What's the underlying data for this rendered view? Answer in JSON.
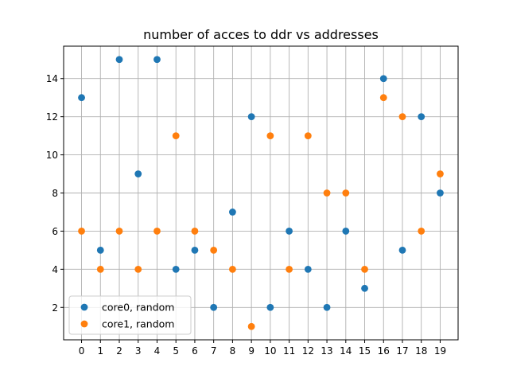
{
  "chart_data": {
    "type": "scatter",
    "title": "number of acces to ddr vs addresses",
    "xlabel": "",
    "ylabel": "",
    "x": [
      0,
      1,
      2,
      3,
      4,
      5,
      6,
      7,
      8,
      9,
      10,
      11,
      12,
      13,
      14,
      15,
      16,
      17,
      18,
      19
    ],
    "x_ticks": [
      "0",
      "1",
      "2",
      "3",
      "4",
      "5",
      "6",
      "7",
      "8",
      "9",
      "10",
      "11",
      "12",
      "13",
      "14",
      "15",
      "16",
      "17",
      "18",
      "19"
    ],
    "y_ticks": [
      2,
      4,
      6,
      8,
      10,
      12,
      14
    ],
    "xlim": [
      -0.95,
      19.95
    ],
    "ylim": [
      0.3,
      15.7
    ],
    "grid": true,
    "legend_position": "lower-left",
    "series": [
      {
        "name": "core0, random",
        "color": "#1f77b4",
        "values": [
          13,
          5,
          15,
          9,
          15,
          4,
          5,
          2,
          7,
          12,
          2,
          6,
          4,
          2,
          6,
          3,
          14,
          5,
          12,
          8
        ]
      },
      {
        "name": "core1, random",
        "color": "#ff7f0e",
        "values": [
          6,
          4,
          6,
          4,
          6,
          11,
          6,
          5,
          4,
          1,
          11,
          4,
          11,
          8,
          8,
          4,
          13,
          12,
          6,
          9
        ]
      }
    ]
  }
}
